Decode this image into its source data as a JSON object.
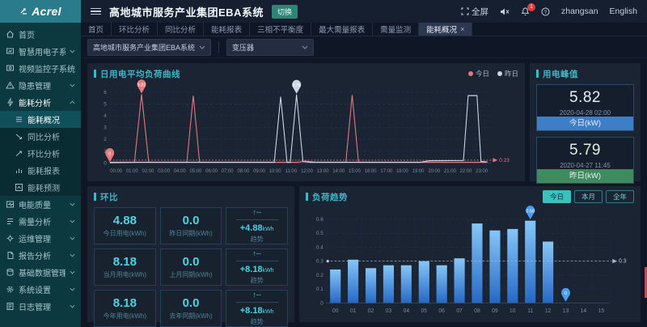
{
  "header": {
    "logo": "Acrel",
    "title": "高地城市服务产业集团EBA系统",
    "switch_button": "切换",
    "fullscreen": "全屏",
    "notification_count": "1",
    "username": "zhangsan",
    "language": "English"
  },
  "sidebar": {
    "items": [
      {
        "label": "首页",
        "icon": "home-icon",
        "expandable": false
      },
      {
        "label": "智慧用电子系统",
        "icon": "smart-power-icon",
        "expandable": true
      },
      {
        "label": "视频监控子系统",
        "icon": "video-monitor-icon",
        "expandable": false
      },
      {
        "label": "隐患管理",
        "icon": "hazard-icon",
        "expandable": true
      },
      {
        "label": "能耗分析",
        "icon": "energy-icon",
        "expandable": true,
        "expanded": true,
        "children": [
          {
            "label": "能耗概况",
            "icon": "overview-icon",
            "active": true
          },
          {
            "label": "同比分析",
            "icon": "yoy-icon"
          },
          {
            "label": "环比分析",
            "icon": "mom-icon"
          },
          {
            "label": "能耗报表",
            "icon": "report-chart-icon"
          },
          {
            "label": "能耗预测",
            "icon": "forecast-icon"
          }
        ]
      },
      {
        "label": "电能质量",
        "icon": "power-quality-icon",
        "expandable": true
      },
      {
        "label": "需量分析",
        "icon": "demand-icon",
        "expandable": true
      },
      {
        "label": "运维管理",
        "icon": "ops-icon",
        "expandable": true
      },
      {
        "label": "报告分析",
        "icon": "report-icon",
        "expandable": true
      },
      {
        "label": "基础数据管理",
        "icon": "database-icon",
        "expandable": true
      },
      {
        "label": "系统设置",
        "icon": "settings-icon",
        "expandable": true
      },
      {
        "label": "日志管理",
        "icon": "log-icon",
        "expandable": true
      }
    ]
  },
  "tabs": [
    {
      "label": "首页"
    },
    {
      "label": "环比分析"
    },
    {
      "label": "同比分析"
    },
    {
      "label": "能耗报表"
    },
    {
      "label": "三相不平衡度"
    },
    {
      "label": "最大需量报表"
    },
    {
      "label": "需量监测"
    },
    {
      "label": "能耗概况",
      "active": true,
      "closable": true
    }
  ],
  "filters": {
    "org": "高地城市服务产业集团EBA系统",
    "device": "变压器"
  },
  "panels": {
    "load_curve": {
      "title": "日用电平均负荷曲线"
    },
    "peak": {
      "title": "用电峰值",
      "cards": [
        {
          "value": "5.82",
          "time": "2020-04-28 02:00",
          "label": "今日(kW)",
          "footer_color": "#3d7ec7",
          "value_color": "#e6eef5"
        },
        {
          "value": "5.79",
          "time": "2020-04-27 11:45",
          "label": "昨日(kW)",
          "footer_color": "#3f8a5f",
          "value_color": "#dfeee2"
        }
      ]
    },
    "ring": {
      "title": "环比",
      "rows": [
        {
          "current": {
            "value": "4.88",
            "label": "今日用电(kWh)"
          },
          "previous": {
            "value": "0.0",
            "label": "昨日同期(kWh)"
          },
          "trend": {
            "arrow": "↑",
            "percent": "--",
            "delta": "+4.88",
            "unit": "kWh",
            "label": "趋势"
          }
        },
        {
          "current": {
            "value": "8.18",
            "label": "当月用电(kWh)"
          },
          "previous": {
            "value": "0.0",
            "label": "上月同期(kWh)"
          },
          "trend": {
            "arrow": "↑",
            "percent": "--",
            "delta": "+8.18",
            "unit": "kWh",
            "label": "趋势"
          }
        },
        {
          "current": {
            "value": "8.18",
            "label": "今年用电(kWh)"
          },
          "previous": {
            "value": "0.0",
            "label": "去年同期(kWh)"
          },
          "trend": {
            "arrow": "↑",
            "percent": "--",
            "delta": "+8.18",
            "unit": "kWh",
            "label": "趋势"
          }
        }
      ]
    },
    "trend": {
      "title": "负荷趋势",
      "buttons": [
        {
          "label": "今日",
          "active": true
        },
        {
          "label": "本月"
        },
        {
          "label": "全年"
        }
      ]
    }
  },
  "chart_data": [
    {
      "id": "daily_load_curve",
      "type": "line",
      "title": "日用电平均负荷曲线",
      "legend": [
        "今日",
        "昨日"
      ],
      "legend_position": "top-right",
      "x_ticks": [
        "00:00",
        "01:00",
        "02:00",
        "03:00",
        "04:00",
        "05:00",
        "06:00",
        "07:00",
        "08:00",
        "09:00",
        "10:00",
        "11:00",
        "12:00",
        "13:00",
        "14:00",
        "15:00",
        "16:00",
        "17:00",
        "18:00",
        "19:00",
        "20:00",
        "21:00",
        "22:00",
        "23:00"
      ],
      "ylim": [
        0,
        6
      ],
      "y_ticks": [
        0,
        1,
        2,
        3,
        4,
        5,
        6
      ],
      "grid": true,
      "avg_line": {
        "value": 0.23,
        "label": "0.23",
        "color": "#e4797e"
      },
      "series": [
        {
          "name": "今日",
          "color": "#e4797e",
          "points": [
            [
              0,
              0
            ],
            [
              1.55,
              0.05
            ],
            [
              2,
              5.82
            ],
            [
              2.45,
              0.05
            ],
            [
              4.85,
              0.05
            ],
            [
              5.25,
              5.7
            ],
            [
              5.65,
              0.05
            ],
            [
              11.8,
              0.05
            ],
            [
              12.3,
              0.15
            ],
            [
              13,
              0.05
            ],
            [
              14.85,
              0.05
            ],
            [
              15.25,
              5.75
            ],
            [
              15.65,
              0.05
            ],
            [
              23.75,
              0.05
            ]
          ]
        },
        {
          "name": "昨日",
          "color": "#ccd5e3",
          "points": [
            [
              0,
              0.05
            ],
            [
              10.35,
              0.05
            ],
            [
              10.75,
              5.6
            ],
            [
              11.15,
              0.05
            ],
            [
              11.35,
              0.05
            ],
            [
              11.75,
              5.79
            ],
            [
              12.15,
              0.12
            ],
            [
              12.6,
              0.05
            ],
            [
              19.5,
              0.05
            ],
            [
              20.1,
              0.18
            ],
            [
              22.25,
              0.2
            ],
            [
              22.55,
              5.7
            ],
            [
              23.1,
              5.7
            ],
            [
              23.35,
              0.12
            ],
            [
              23.75,
              0.08
            ]
          ]
        }
      ],
      "markers": [
        {
          "series": 0,
          "x": 2,
          "y": 5.82,
          "label": "5.82"
        },
        {
          "series": 0,
          "x": 0,
          "y": 0,
          "label": "0"
        },
        {
          "series": 1,
          "x": 11.75,
          "y": 5.79,
          "label": "5.79"
        }
      ]
    },
    {
      "id": "load_trend",
      "type": "bar",
      "title": "负荷趋势",
      "categories": [
        "00",
        "01",
        "02",
        "03",
        "04",
        "05",
        "06",
        "07",
        "08",
        "09",
        "10",
        "11",
        "12",
        "13",
        "14",
        "15"
      ],
      "values": [
        0.24,
        0.31,
        0.25,
        0.27,
        0.27,
        0.3,
        0.27,
        0.32,
        0.57,
        0.52,
        0.53,
        0.59,
        0.44,
        0,
        null,
        null
      ],
      "ylim": [
        0,
        0.6
      ],
      "y_ticks": [
        0,
        0.1,
        0.2,
        0.3,
        0.4,
        0.5,
        0.6
      ],
      "grid": true,
      "avg_line": {
        "value": 0.3,
        "label": "0.3",
        "color": "#aab4c4"
      },
      "max_marker": {
        "index": 11,
        "label": "0.59",
        "color": "#4a9df0"
      },
      "min_marker": {
        "index": 13,
        "label": "0",
        "color": "#4a9df0"
      },
      "bar_gradient": [
        "#86c6f8",
        "#2568c4"
      ]
    }
  ],
  "colors": {
    "accent_teal": "#2fc0cf",
    "cyan_value": "#4ed3e2",
    "header_bg": "#161f30",
    "logo_bg": "#2a7b8c",
    "sidebar_bg": "#0c3940",
    "panel_bg": "#1a2433"
  }
}
